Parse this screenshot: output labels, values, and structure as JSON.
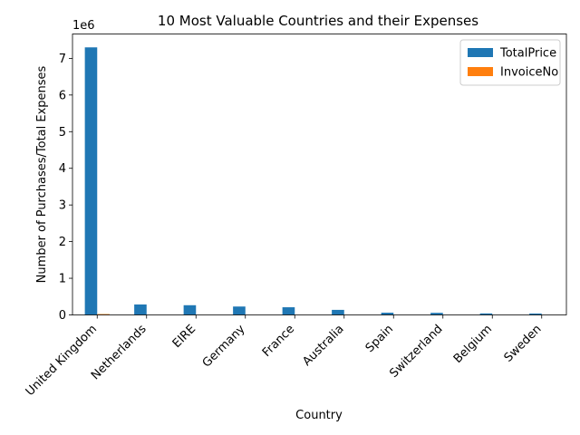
{
  "chart_data": {
    "type": "bar",
    "title": "10 Most Valuable Countries and their Expenses",
    "xlabel": "Country",
    "ylabel": "Number of Purchases/Total Expenses",
    "offset_text": "1e6",
    "categories": [
      "United Kingdom",
      "Netherlands",
      "EIRE",
      "Germany",
      "France",
      "Australia",
      "Spain",
      "Switzerland",
      "Belgium",
      "Sweden"
    ],
    "series": [
      {
        "name": "TotalPrice",
        "color": "#1f77b4",
        "values": [
          7300000,
          285000,
          265000,
          229000,
          209000,
          138000,
          61000,
          57000,
          41000,
          38000
        ]
      },
      {
        "name": "InvoiceNo",
        "color": "#ff7f0e",
        "values": [
          23000,
          100,
          320,
          600,
          460,
          70,
          100,
          70,
          120,
          50
        ]
      }
    ],
    "ylim": [
      0,
      7665000
    ],
    "yticks": [
      {
        "value": 0,
        "label": "0"
      },
      {
        "value": 1000000,
        "label": "1"
      },
      {
        "value": 2000000,
        "label": "2"
      },
      {
        "value": 3000000,
        "label": "3"
      },
      {
        "value": 4000000,
        "label": "4"
      },
      {
        "value": 5000000,
        "label": "5"
      },
      {
        "value": 6000000,
        "label": "6"
      },
      {
        "value": 7000000,
        "label": "7"
      }
    ],
    "grid": false,
    "legend_position": "top-right"
  }
}
